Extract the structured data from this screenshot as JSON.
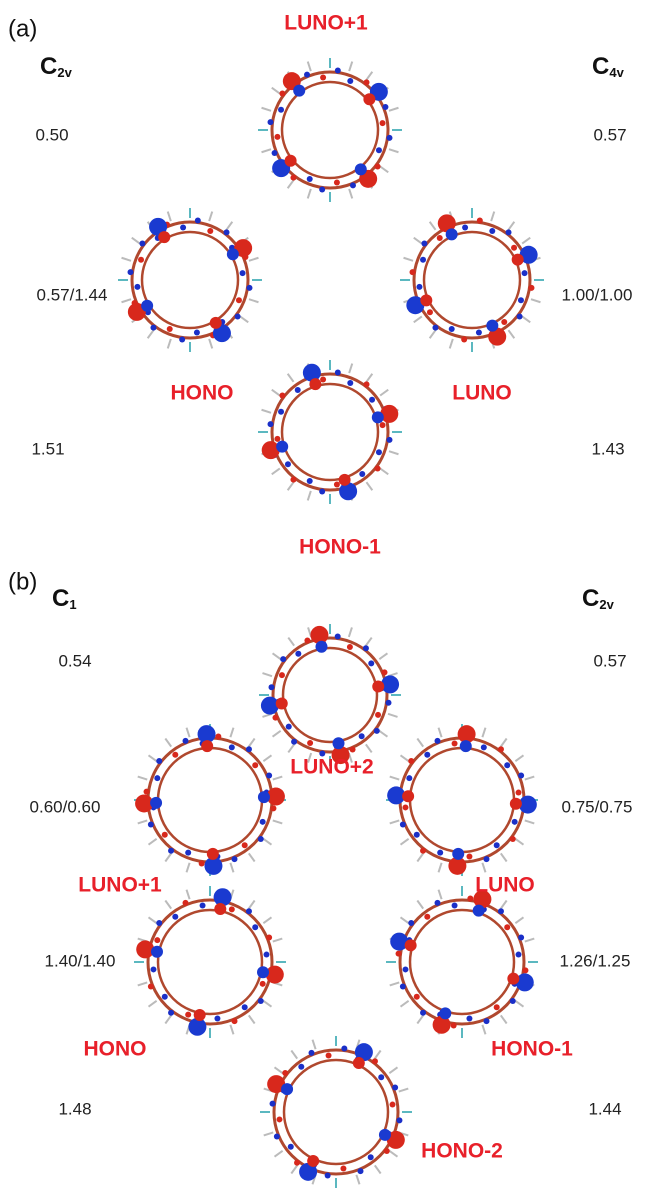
{
  "panels": [
    {
      "label": "(a)",
      "left_symmetry": {
        "symbol": "C",
        "subscript": "2v"
      },
      "right_symmetry": {
        "symbol": "C",
        "subscript": "4v"
      },
      "orbitals": [
        "LUNO+1",
        "HONO",
        "LUNO",
        "HONO-1"
      ],
      "left_values": [
        "0.50",
        "0.57/1.44",
        "1.51"
      ],
      "right_values": [
        "0.57",
        "1.00/1.00",
        "1.43"
      ]
    },
    {
      "label": "(b)",
      "left_symmetry": {
        "symbol": "C",
        "subscript": "1"
      },
      "right_symmetry": {
        "symbol": "C",
        "subscript": "2v"
      },
      "orbitals": [
        "LUNO+2",
        "LUNO+1",
        "LUNO",
        "HONO",
        "HONO-1",
        "HONO-2"
      ],
      "left_values": [
        "0.54",
        "0.60/0.60",
        "1.40/1.40",
        "1.48"
      ],
      "right_values": [
        "0.57",
        "0.75/0.75",
        "1.26/1.25",
        "1.44"
      ]
    }
  ]
}
